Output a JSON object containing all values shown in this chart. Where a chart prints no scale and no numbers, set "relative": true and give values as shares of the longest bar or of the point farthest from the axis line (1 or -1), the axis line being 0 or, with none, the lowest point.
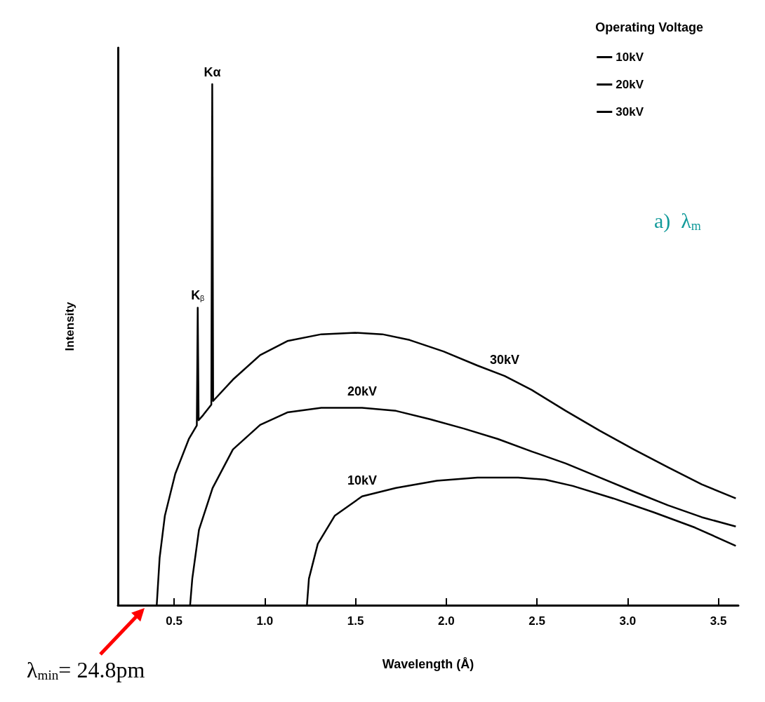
{
  "chart_data": {
    "type": "line",
    "xlabel": "Wavelength (Å)",
    "ylabel": "Intensity",
    "legend_title": "Operating Voltage",
    "legend": "top right",
    "relative": true,
    "line_style": "solid",
    "marker": "none",
    "grid": false,
    "xlim": [
      0.19,
      3.61
    ],
    "xticks": [
      {
        "value": 0.5,
        "label": "0.5"
      },
      {
        "value": 1,
        "label": "1.0"
      },
      {
        "value": 1.5,
        "label": "1.5"
      },
      {
        "value": 2,
        "label": "2.0"
      },
      {
        "value": 2.5,
        "label": "2.5"
      },
      {
        "value": 3,
        "label": "3.0"
      },
      {
        "value": 3.5,
        "label": "3.5"
      }
    ],
    "series": [
      {
        "name": "10kV",
        "color": "#000000",
        "x": [
          1.232,
          1.243,
          1.292,
          1.386,
          1.536,
          1.723,
          1.948,
          2.172,
          2.397,
          2.547,
          2.697,
          2.921,
          3.146,
          3.371,
          3.596
        ],
        "values": [
          0,
          0.051,
          0.118,
          0.172,
          0.209,
          0.225,
          0.239,
          0.245,
          0.245,
          0.241,
          0.229,
          0.205,
          0.178,
          0.149,
          0.114
        ]
      },
      {
        "name": "20kV",
        "color": "#000000",
        "x": [
          0.588,
          0.6,
          0.637,
          0.712,
          0.824,
          0.974,
          1.124,
          1.311,
          1.536,
          1.723,
          1.91,
          2.097,
          2.285,
          2.472,
          2.659,
          2.846,
          3.034,
          3.221,
          3.408,
          3.596
        ],
        "values": [
          0,
          0.051,
          0.145,
          0.225,
          0.299,
          0.346,
          0.37,
          0.379,
          0.379,
          0.373,
          0.357,
          0.339,
          0.319,
          0.295,
          0.272,
          0.245,
          0.218,
          0.192,
          0.169,
          0.151
        ]
      },
      {
        "name": "30kV",
        "color": "#000000",
        "x": [
          0.404,
          0.42,
          0.449,
          0.506,
          0.581,
          0.625,
          0.63,
          0.635,
          0.66,
          0.705,
          0.71,
          0.715,
          0.824,
          0.974,
          1.124,
          1.311,
          1.498,
          1.648,
          1.798,
          1.985,
          2.172,
          2.322,
          2.472,
          2.659,
          2.846,
          3.034,
          3.221,
          3.408,
          3.596
        ],
        "values": [
          0,
          0.091,
          0.172,
          0.252,
          0.319,
          0.345,
          0.571,
          0.355,
          0.365,
          0.385,
          1,
          0.392,
          0.433,
          0.48,
          0.507,
          0.52,
          0.523,
          0.52,
          0.509,
          0.487,
          0.46,
          0.44,
          0.413,
          0.373,
          0.335,
          0.299,
          0.265,
          0.232,
          0.205
        ]
      }
    ],
    "annotations": [
      {
        "text": "Kα",
        "x": 0.71,
        "y": 1
      },
      {
        "text": "K$_{β}$",
        "x": 0.63,
        "y": 0.571
      },
      "λ$_{min}$= 24.8pm",
      "a)  λ$_{m}$"
    ]
  }
}
